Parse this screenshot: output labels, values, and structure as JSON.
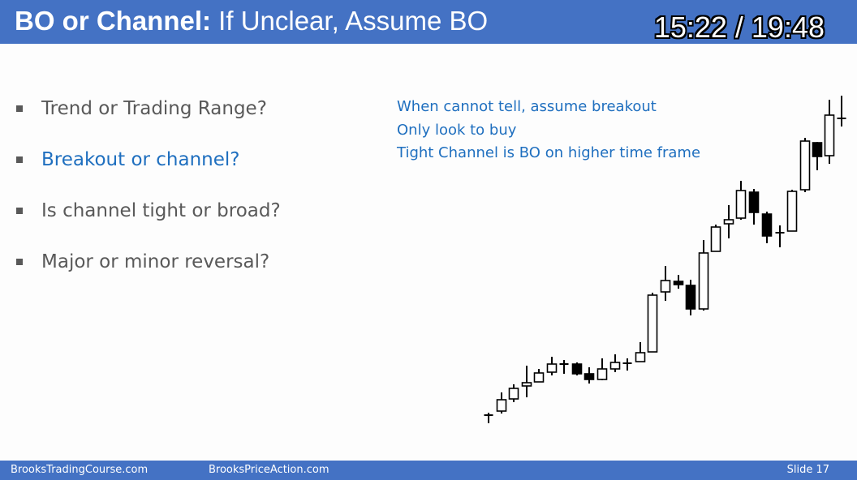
{
  "header": {
    "title_bold": "BO or Channel:",
    "title_rest": " If Unclear, Assume BO",
    "timer": "15:22 / 19:48"
  },
  "bullets": [
    "Trend or Trading Range?",
    "Breakout or channel?",
    "Is channel tight or broad?",
    "Major or minor reversal?"
  ],
  "highlighted_bullet": 1,
  "notes": [
    "When cannot tell, assume breakout",
    "Only look to buy",
    "Tight Channel is BO on higher time frame"
  ],
  "footer": {
    "left": "BrooksTradingCourse.com",
    "middle": "BrooksPriceAction.com",
    "slide": "Slide  17"
  },
  "colors": {
    "header_bg": "#4472c4",
    "accent_text": "#1f6fbf",
    "body_text": "#595959",
    "background": "#fdfdfd"
  }
}
